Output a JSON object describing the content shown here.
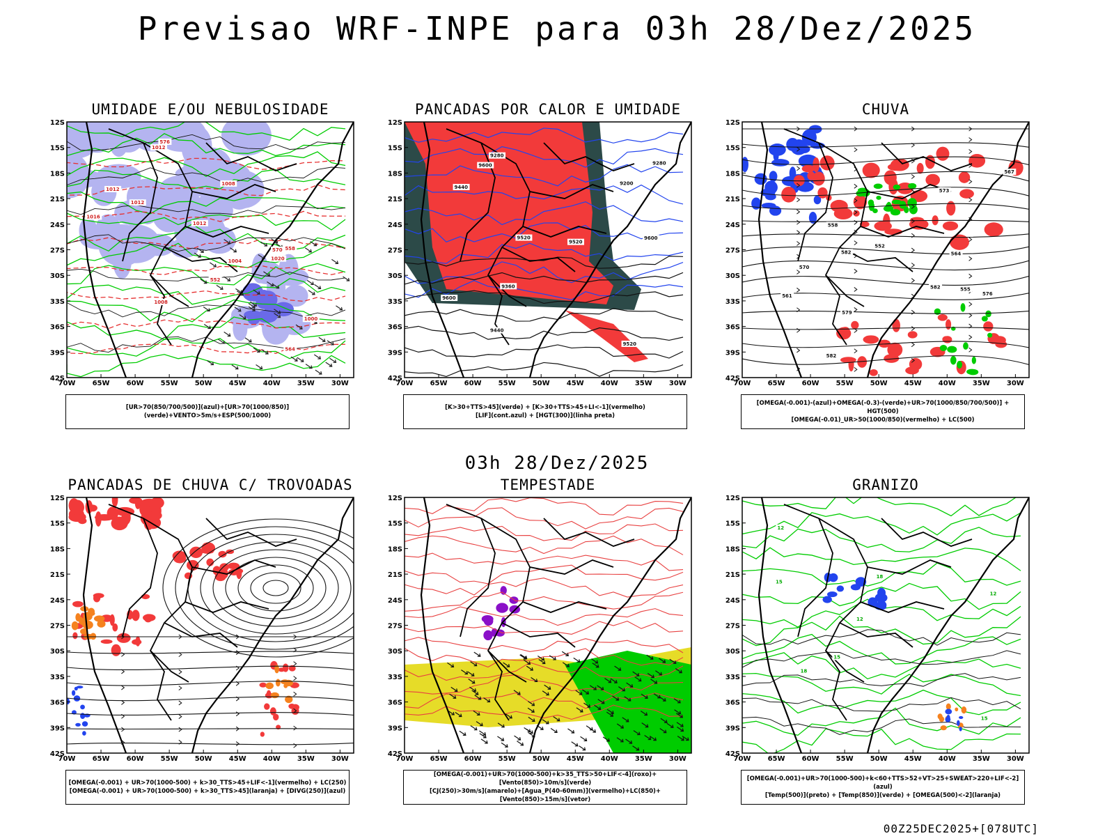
{
  "title": "Previsao WRF-INPE  para 03h 28/Dez/2025",
  "mid_time": "03h 28/Dez/2025",
  "footer": "00Z25DEC2025+[078UTC]",
  "axes": {
    "lat_labels": [
      "12S",
      "15S",
      "18S",
      "21S",
      "24S",
      "27S",
      "30S",
      "33S",
      "36S",
      "39S",
      "42S"
    ],
    "lon_labels": [
      "70W",
      "65W",
      "60W",
      "55W",
      "50W",
      "45W",
      "40W",
      "35W",
      "30W"
    ]
  },
  "colors": {
    "red": "#f23a3a",
    "green": "#00cc00",
    "blue": "#2244ee",
    "lavender": "#b4b4f0",
    "darkteal": "#2c4a48",
    "yellow": "#e6dc28",
    "orange": "#f5821e",
    "purple": "#8a10c8"
  },
  "panels": [
    {
      "title": "UMIDADE E/OU NEBULOSIDADE",
      "legend": [
        "[UR>70(850/700/500)](azul)+[UR>70(1000/850)](verde)+VENTO>5m/s+ESP(500/1000)"
      ],
      "contour_labels": [
        "1012",
        "1012",
        "1012",
        "1012",
        "1008",
        "1008",
        "1016",
        "1004",
        "1000",
        "1020",
        "576",
        "570",
        "564",
        "558",
        "552"
      ]
    },
    {
      "title": "PANCADAS POR CALOR E UMIDADE",
      "legend": [
        "[K>30+TTS>45](verde) + [K>30+TTS>45+LI<-1](vermelho)",
        "[LIF](cont.azul) + [HGT(300)](linha preta)"
      ],
      "contour_labels": [
        "9600",
        "9600",
        "9520",
        "9520",
        "9600",
        "9440",
        "9520",
        "9440",
        "9360",
        "9280",
        "9200",
        "9280"
      ]
    },
    {
      "title": "CHUVA",
      "legend": [
        "[OMEGA(-0.001)-(azul)+OMEGA(-0.3)-(verde)+UR>70(1000/850/700/500)] + HGT(500)",
        "[OMEGA(-0.01)_UR>50(1000/850)(vermelho) + LC(500)"
      ],
      "contour_labels": [
        "582",
        "582",
        "582",
        "579",
        "576",
        "573",
        "570",
        "567",
        "564",
        "561",
        "558",
        "555",
        "552"
      ]
    },
    {
      "title": "PANCADAS DE CHUVA C/ TROVOADAS",
      "legend": [
        "[OMEGA(-0.001) + UR>70(1000-500) + k>30_TTS>45+LIF<-1](vermelho) + LC(250)",
        "[OMEGA(-0.001) + UR>70(1000-500) + k>30_TTS>45](laranja) + [DIVG(250)](azul)"
      ],
      "contour_labels": []
    },
    {
      "title": "TEMPESTADE",
      "legend": [
        "[OMEGA(-0.001)+UR>70(1000-500)+k>35_TTS>50+LIF<-4](roxo)+[Vento(850)>10m/s](verde)",
        "[CJ(250)>30m/s](amarelo)+[Agua_P(40-60mm)](vermelho)+LC(850)+[Vento(850)>15m/s](vetor)"
      ],
      "contour_labels": []
    },
    {
      "title": "GRANIZO",
      "legend": [
        "[OMEGA(-0.001)+UR>70(1000-500)+k<60+TTS>52+VT>25+SWEAT>220+LIF<-2](azul)",
        "[Temp(500)](preto) + [Temp(850)](verde) + [OMEGA(500)<-2](laranja)"
      ],
      "contour_labels": [
        "12",
        "15",
        "18",
        "12",
        "15",
        "18",
        "15",
        "12"
      ]
    }
  ]
}
